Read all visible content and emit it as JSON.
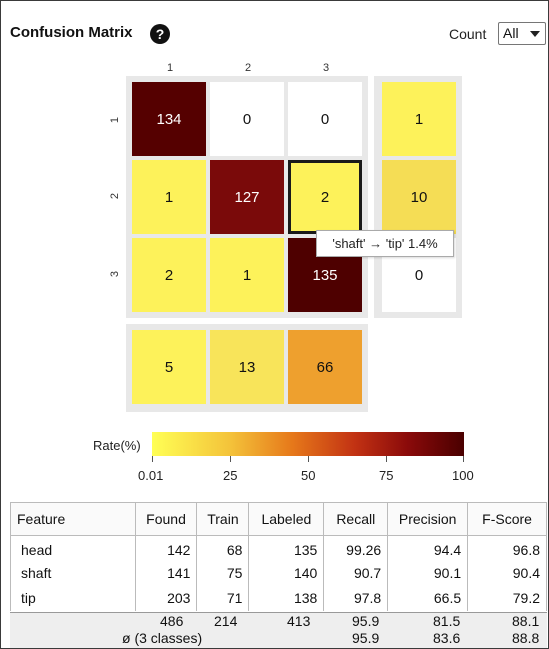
{
  "header": {
    "title": "Confusion Matrix",
    "help_glyph": "?",
    "count_label": "Count",
    "count_value": "All"
  },
  "matrix": {
    "col_labels": [
      "1",
      "2",
      "3"
    ],
    "row_labels": [
      "1",
      "2",
      "3"
    ],
    "cells": [
      [
        "134",
        "0",
        "0"
      ],
      [
        "1",
        "127",
        "2"
      ],
      [
        "2",
        "1",
        "135"
      ]
    ],
    "row_totals": [
      "1",
      "10",
      "0"
    ],
    "col_totals": [
      "5",
      "13",
      "66"
    ],
    "tooltip": "'shaft' → 'tip' 1.4%"
  },
  "colors": {
    "c134": "#550000",
    "c127": "#7a0a0a",
    "c135": "#4e0000",
    "low": "#fdf25a",
    "rt10": "#f5dd55",
    "ct13": "#f8e45a",
    "ct66": "#eea02e",
    "white": "#ffffff"
  },
  "legend": {
    "label": "Rate(%)",
    "ticks": [
      "0.01",
      "25",
      "50",
      "75",
      "100"
    ]
  },
  "table": {
    "headers": [
      "Feature",
      "Found",
      "Train",
      "Labeled",
      "Recall",
      "Precision",
      "F-Score"
    ],
    "rows": [
      [
        "head",
        "142",
        "68",
        "135",
        "99.26",
        "94.4",
        "96.8"
      ],
      [
        "shaft",
        "141",
        "75",
        "140",
        "90.7",
        "90.1",
        "90.4"
      ],
      [
        "tip",
        "203",
        "71",
        "138",
        "97.8",
        "66.5",
        "79.2"
      ]
    ],
    "totals": [
      "486",
      "214",
      "413",
      "95.9",
      "81.5",
      "88.1"
    ],
    "avg_label": "ø (3 classes)",
    "avg": [
      "95.9",
      "83.6",
      "88.8"
    ]
  }
}
